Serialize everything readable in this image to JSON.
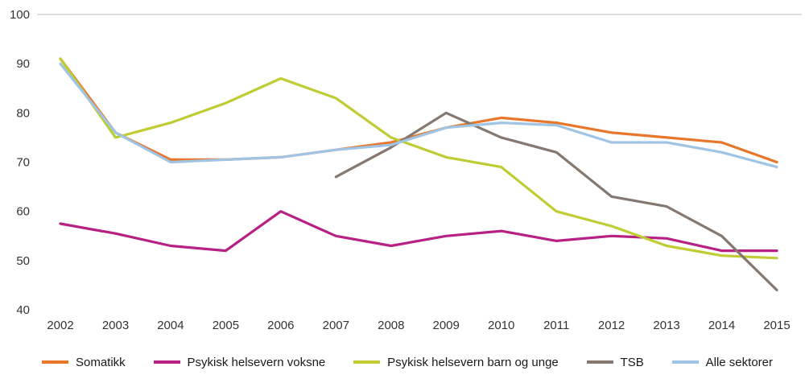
{
  "chart_data": {
    "type": "line",
    "title": "",
    "xlabel": "",
    "ylabel": "",
    "x": [
      "2002",
      "2003",
      "2004",
      "2005",
      "2006",
      "2007",
      "2008",
      "2009",
      "2010",
      "2011",
      "2012",
      "2013",
      "2014",
      "2015"
    ],
    "ylim": [
      40,
      100
    ],
    "yticks": [
      40,
      50,
      60,
      70,
      80,
      90,
      100
    ],
    "grid": "top-line-only",
    "legend_position": "bottom",
    "series": [
      {
        "name": "Somatikk",
        "color": "#E8762B",
        "values": [
          91,
          76,
          70.5,
          70.5,
          71,
          72.5,
          74,
          77,
          79,
          78,
          76,
          75,
          74,
          70
        ]
      },
      {
        "name": "Psykisk helsevern voksne",
        "color": "#B72183",
        "values": [
          57.5,
          55.5,
          53,
          52,
          60,
          55,
          53,
          55,
          56,
          54,
          55,
          54.5,
          52,
          52
        ]
      },
      {
        "name": "Psykisk helsevern barn og unge",
        "color": "#BFCC33",
        "values": [
          91,
          75,
          78,
          82,
          87,
          83,
          75,
          71,
          69,
          60,
          57,
          53,
          51,
          50.5
        ]
      },
      {
        "name": "TSB",
        "color": "#847870",
        "values": [
          null,
          null,
          null,
          null,
          null,
          67,
          73,
          80,
          75,
          72,
          63,
          61,
          55,
          44
        ]
      },
      {
        "name": "Alle sektorer",
        "color": "#A0C4E4",
        "values": [
          90,
          76,
          70,
          70.5,
          71,
          72.5,
          73.5,
          77,
          78,
          77.5,
          74,
          74,
          72,
          69
        ]
      }
    ]
  }
}
